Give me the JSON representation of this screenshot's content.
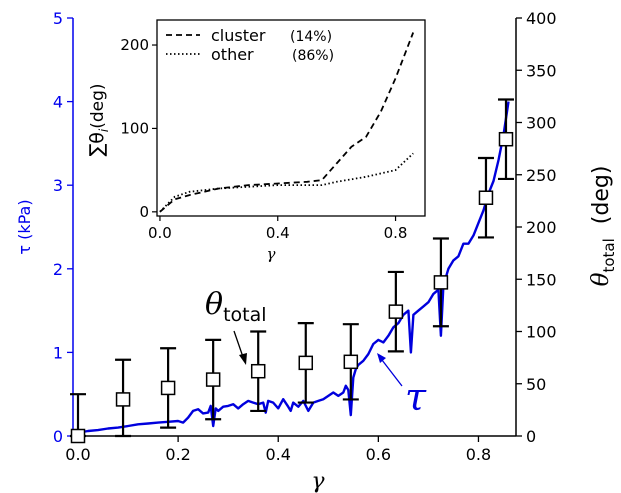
{
  "chart_data": [
    {
      "type": "line",
      "xlabel": "γ",
      "ylabel_left": "τ (kPa)",
      "ylabel_right_main": "θ",
      "ylabel_right_sub": "total",
      "ylabel_right_unit": "(deg)",
      "xlim": [
        -0.01,
        0.875
      ],
      "xticks": [
        0.0,
        0.2,
        0.4,
        0.6,
        0.8
      ],
      "xtick_labels": [
        "0.0",
        "0.2",
        "0.4",
        "0.6",
        "0.8"
      ],
      "ylim_left": [
        0,
        5
      ],
      "yticks_left": [
        "0",
        "1",
        "2",
        "3",
        "4",
        "5"
      ],
      "ylim_right": [
        0,
        400
      ],
      "yticks_right": [
        "0",
        "50",
        "100",
        "150",
        "200",
        "250",
        "300",
        "350",
        "400"
      ],
      "colors": {
        "tau": "#0000dd",
        "theta": "#000000",
        "axis_left": "#0000ee"
      },
      "annotations": {
        "theta_main": "θ",
        "theta_sub": "total",
        "tau_label": "τ"
      },
      "series": [
        {
          "name": "τ",
          "axis": "left",
          "style": "solid",
          "x": [
            0.0,
            0.02,
            0.04,
            0.06,
            0.08,
            0.1,
            0.12,
            0.14,
            0.16,
            0.18,
            0.2,
            0.21,
            0.22,
            0.23,
            0.24,
            0.25,
            0.26,
            0.265,
            0.27,
            0.275,
            0.28,
            0.29,
            0.3,
            0.31,
            0.32,
            0.33,
            0.34,
            0.35,
            0.36,
            0.37,
            0.375,
            0.38,
            0.39,
            0.4,
            0.41,
            0.42,
            0.425,
            0.43,
            0.44,
            0.45,
            0.46,
            0.47,
            0.48,
            0.49,
            0.5,
            0.51,
            0.52,
            0.53,
            0.535,
            0.54,
            0.545,
            0.55,
            0.555,
            0.56,
            0.57,
            0.58,
            0.59,
            0.6,
            0.61,
            0.62,
            0.63,
            0.64,
            0.65,
            0.66,
            0.665,
            0.67,
            0.68,
            0.69,
            0.7,
            0.71,
            0.72,
            0.725,
            0.73,
            0.74,
            0.75,
            0.76,
            0.77,
            0.78,
            0.79,
            0.8,
            0.81,
            0.82,
            0.83,
            0.84,
            0.85,
            0.86
          ],
          "values": [
            0.04,
            0.06,
            0.07,
            0.09,
            0.1,
            0.12,
            0.14,
            0.15,
            0.16,
            0.17,
            0.18,
            0.16,
            0.22,
            0.3,
            0.32,
            0.27,
            0.28,
            0.36,
            0.12,
            0.33,
            0.3,
            0.35,
            0.36,
            0.38,
            0.33,
            0.38,
            0.42,
            0.4,
            0.38,
            0.4,
            0.28,
            0.42,
            0.4,
            0.33,
            0.44,
            0.35,
            0.3,
            0.4,
            0.35,
            0.42,
            0.3,
            0.4,
            0.42,
            0.44,
            0.48,
            0.52,
            0.48,
            0.52,
            0.6,
            0.55,
            0.25,
            0.7,
            0.8,
            0.85,
            0.9,
            0.98,
            1.1,
            1.15,
            1.12,
            1.2,
            1.3,
            1.35,
            1.45,
            1.5,
            1.0,
            1.45,
            1.5,
            1.55,
            1.6,
            1.7,
            1.75,
            1.2,
            1.8,
            2.0,
            2.1,
            2.15,
            2.3,
            2.3,
            2.4,
            2.55,
            2.7,
            2.9,
            3.05,
            3.3,
            3.6,
            4.0
          ]
        },
        {
          "name": "θtotal",
          "axis": "right",
          "style": "markers-with-errorbars",
          "x": [
            0.0,
            0.09,
            0.18,
            0.27,
            0.36,
            0.455,
            0.545,
            0.635,
            0.725,
            0.815,
            0.855
          ],
          "values": [
            0,
            35,
            46,
            54,
            62,
            70,
            71,
            119,
            147,
            228,
            284
          ],
          "errors": [
            40,
            38,
            38,
            38,
            38,
            38,
            36,
            38,
            42,
            38,
            38
          ]
        }
      ]
    },
    {
      "type": "line",
      "role": "inset",
      "xlabel": "γ",
      "ylabel_main": "∑θ",
      "ylabel_sub": "i",
      "ylabel_unit": "(deg)",
      "xlim": [
        -0.01,
        0.9
      ],
      "xticks": [
        0.0,
        0.4,
        0.8
      ],
      "xtick_labels": [
        "0.0",
        "0.4",
        "0.8"
      ],
      "ylim": [
        -5,
        230
      ],
      "yticks": [
        0,
        100,
        200
      ],
      "ytick_labels": [
        "0",
        "100",
        "200"
      ],
      "legend_position": "top-left",
      "series": [
        {
          "name": "cluster",
          "pct": "(14%)",
          "style": "dashed",
          "x": [
            0.0,
            0.05,
            0.1,
            0.2,
            0.3,
            0.4,
            0.5,
            0.55,
            0.6,
            0.65,
            0.7,
            0.75,
            0.8,
            0.86
          ],
          "values": [
            0,
            15,
            20,
            28,
            32,
            34,
            36,
            38,
            58,
            78,
            90,
            120,
            160,
            215
          ]
        },
        {
          "name": "other",
          "pct": "(86%)",
          "style": "dotted",
          "x": [
            0.0,
            0.05,
            0.1,
            0.2,
            0.3,
            0.4,
            0.5,
            0.55,
            0.6,
            0.7,
            0.8,
            0.86
          ],
          "values": [
            0,
            18,
            24,
            28,
            30,
            32,
            32,
            32,
            36,
            42,
            50,
            70
          ]
        }
      ]
    }
  ]
}
